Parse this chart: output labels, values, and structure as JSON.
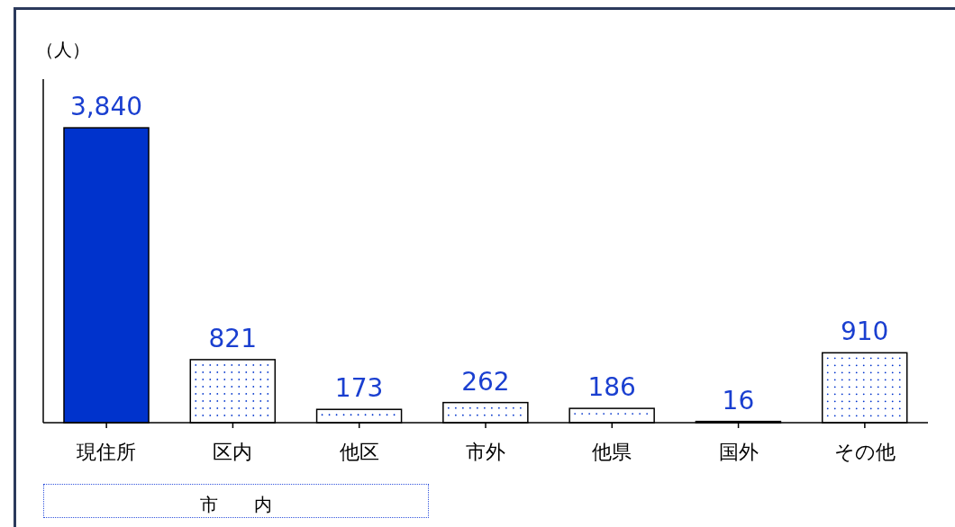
{
  "chart_data": {
    "type": "bar",
    "ylabel": "（人）",
    "categories": [
      "現住所",
      "区内",
      "他区",
      "市外",
      "他県",
      "国外",
      "その他"
    ],
    "values": [
      3840,
      821,
      173,
      262,
      186,
      16,
      910
    ],
    "value_labels": [
      "3,840",
      "821",
      "173",
      "262",
      "186",
      "16",
      "910"
    ],
    "colors": [
      "#0033cc",
      "#ffffff",
      "#ffffff",
      "#ffffff",
      "#ffffff",
      "#ffffff",
      "#ffffff"
    ],
    "grid": false,
    "annotations": [
      "市　　内"
    ]
  }
}
